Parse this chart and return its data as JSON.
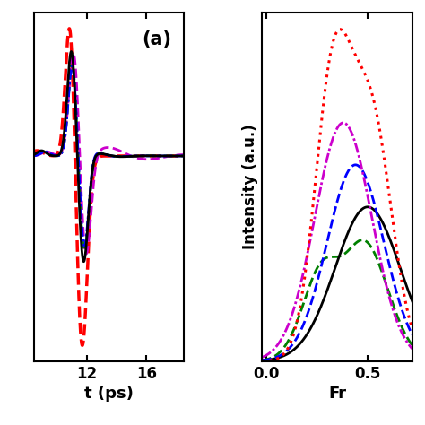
{
  "panel_a_label": "(a)",
  "panel_a_xlabel": "t (ps)",
  "panel_b_xlabel": "Fr",
  "panel_b_ylabel": "Intensity (a.u.)",
  "panel_a_xlim": [
    8.5,
    18.5
  ],
  "panel_a_xticks": [
    12,
    16
  ],
  "panel_b_xlim": [
    -0.02,
    0.72
  ],
  "panel_b_xticks": [
    0.0,
    0.5
  ],
  "colors_a": [
    "#000000",
    "#ff0000",
    "#0000ff",
    "#008000",
    "#cc00cc"
  ],
  "colors_b": [
    "#000000",
    "#ff0000",
    "#0000ff",
    "#008000",
    "#cc00cc"
  ],
  "lws_a": [
    2.0,
    2.5,
    2.0,
    2.0,
    2.0
  ],
  "lws_b": [
    2.0,
    2.2,
    2.0,
    2.0,
    2.0
  ],
  "background": "#ffffff",
  "tick_fontsize": 12,
  "label_fontsize": 13
}
